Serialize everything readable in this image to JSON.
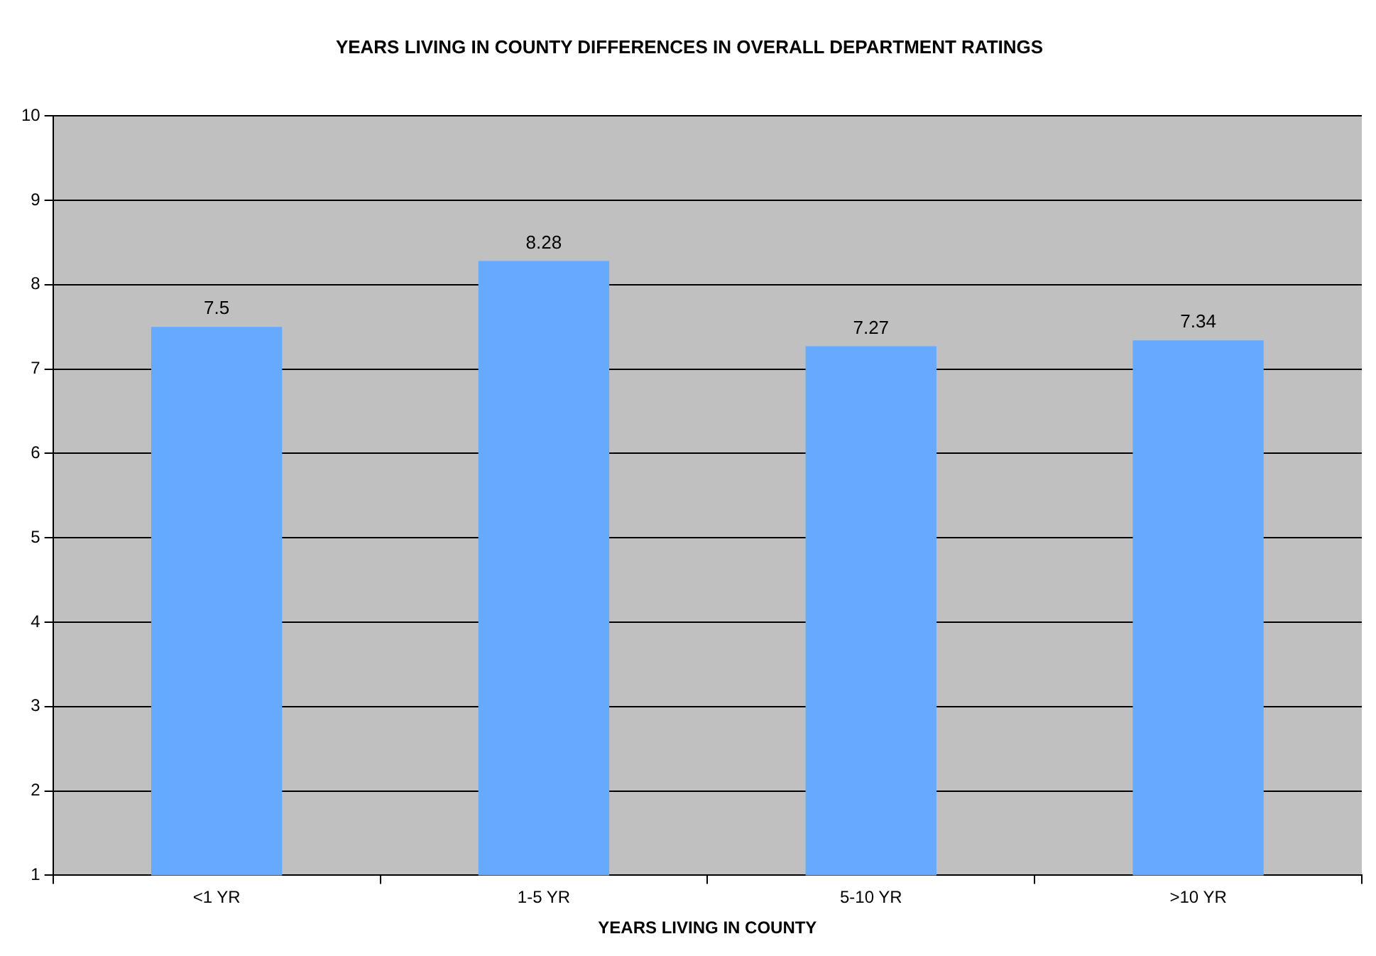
{
  "chart_data": {
    "type": "bar",
    "title": "YEARS LIVING IN COUNTY DIFFERENCES IN OVERALL DEPARTMENT RATINGS",
    "xlabel": "YEARS LIVING IN COUNTY",
    "categories": [
      "<1 YR",
      "1-5 YR",
      "5-10 YR",
      ">10 YR"
    ],
    "values": [
      7.5,
      8.28,
      7.27,
      7.34
    ],
    "color": "#66aaff",
    "ylim": [
      1,
      10
    ],
    "yticks": [
      1,
      2,
      3,
      4,
      5,
      6,
      7,
      8,
      9,
      10
    ],
    "grid": "y",
    "data_labels": true,
    "legend": false
  }
}
